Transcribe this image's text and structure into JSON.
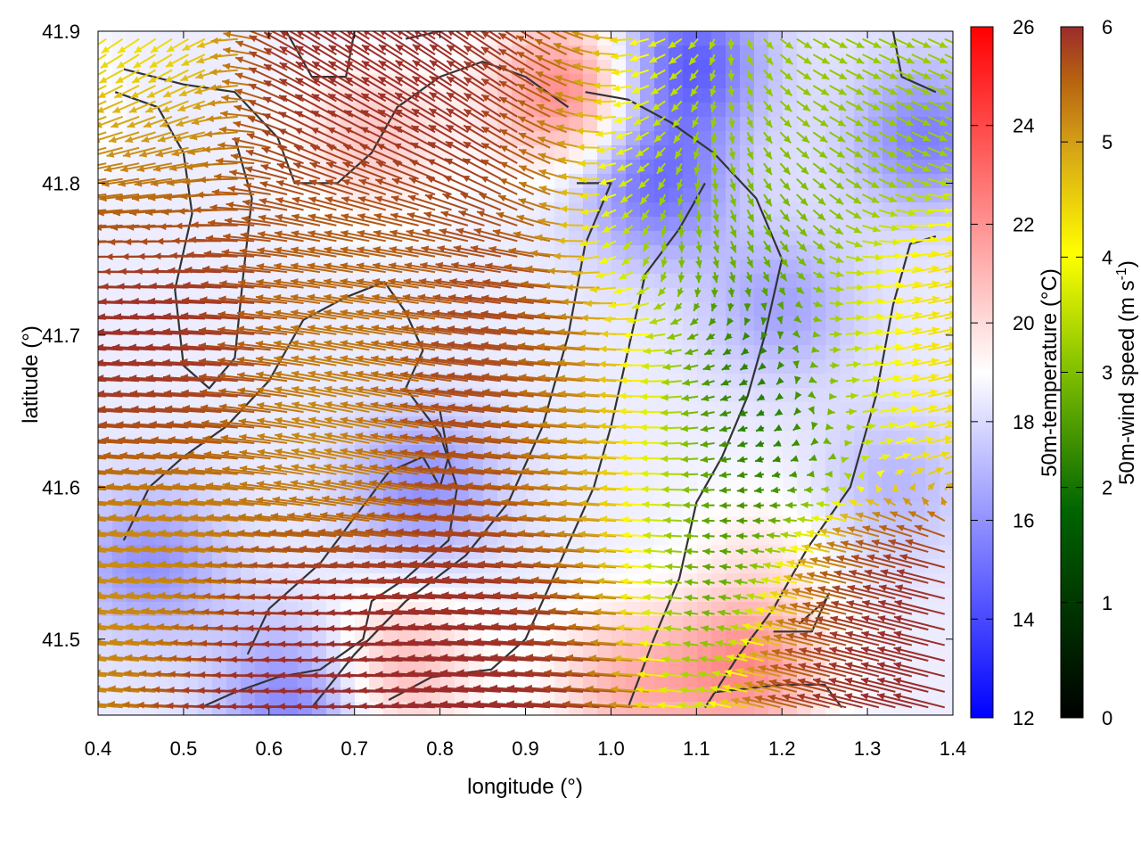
{
  "chart_data": {
    "type": "heatmap",
    "subtype": "vector-field-over-temperature-map",
    "xlabel": "longitude (°)",
    "ylabel": "latitude (°)",
    "xlim": [
      0.4,
      1.4
    ],
    "ylim": [
      41.45,
      41.9
    ],
    "x_ticks": [
      "0.4",
      "0.5",
      "0.6",
      "0.7",
      "0.8",
      "0.9",
      "1.0",
      "1.1",
      "1.2",
      "1.3",
      "1.4"
    ],
    "y_ticks": [
      "41.5",
      "41.6",
      "41.7",
      "41.8",
      "41.9"
    ],
    "grid": false,
    "legend": "none",
    "temperature_colorbar": {
      "label": "50m-temperature (°C)",
      "range": [
        12,
        26
      ],
      "ticks": [
        "12",
        "14",
        "16",
        "18",
        "20",
        "22",
        "24",
        "26"
      ],
      "colors": [
        "#0000ff",
        "#ffffff",
        "#ff0000"
      ]
    },
    "wind_colorbar": {
      "label_main": "50m-wind speed (m s",
      "label_exp": "-1",
      "label_close": ")",
      "range": [
        0,
        6
      ],
      "ticks": [
        "0",
        "1",
        "2",
        "3",
        "4",
        "5",
        "6"
      ],
      "colors": [
        "#000000",
        "#006400",
        "#7fbf00",
        "#ffff00",
        "#d4a017",
        "#b8640f",
        "#9c2b2b"
      ]
    },
    "temperature_blobs": [
      {
        "lon": 0.95,
        "lat": 41.86,
        "t": 22.5
      },
      {
        "lon": 0.3,
        "lat": 41.85,
        "t": 21.0
      },
      {
        "lon": 0.72,
        "lat": 41.83,
        "t": 20.5
      },
      {
        "lon": 1.09,
        "lat": 41.88,
        "t": 14.5
      },
      {
        "lon": 1.05,
        "lat": 41.8,
        "t": 15.0
      },
      {
        "lon": 1.37,
        "lat": 41.83,
        "t": 15.5
      },
      {
        "lon": 1.2,
        "lat": 41.72,
        "t": 16.5
      },
      {
        "lon": 0.46,
        "lat": 41.55,
        "t": 16.0
      },
      {
        "lon": 0.78,
        "lat": 41.6,
        "t": 16.0
      },
      {
        "lon": 1.18,
        "lat": 41.56,
        "t": 19.5
      },
      {
        "lon": 1.16,
        "lat": 41.48,
        "t": 22.0
      },
      {
        "lon": 1.02,
        "lat": 41.47,
        "t": 21.0
      },
      {
        "lon": 0.75,
        "lat": 41.48,
        "t": 21.0
      },
      {
        "lon": 0.63,
        "lat": 41.46,
        "t": 15.5
      },
      {
        "lon": 1.33,
        "lat": 41.6,
        "t": 17.0
      }
    ],
    "wind_regions": [
      {
        "lon": 0.45,
        "lat": 41.78,
        "u": -5.0,
        "v": 0.2,
        "speed": 6.0
      },
      {
        "lon": 0.5,
        "lat": 41.68,
        "u": -5.8,
        "v": 0.3,
        "speed": 6.0
      },
      {
        "lon": 0.72,
        "lat": 41.85,
        "u": -3.8,
        "v": 2.4,
        "speed": 6.0
      },
      {
        "lon": 0.9,
        "lat": 41.87,
        "u": -3.5,
        "v": 2.5,
        "speed": 6.0
      },
      {
        "lon": 0.88,
        "lat": 41.65,
        "u": -5.5,
        "v": 0.6,
        "speed": 6.0
      },
      {
        "lon": 0.92,
        "lat": 41.52,
        "u": -5.7,
        "v": 0.4,
        "speed": 6.0
      },
      {
        "lon": 0.68,
        "lat": 41.49,
        "u": -5.5,
        "v": 0.1,
        "speed": 6.0
      },
      {
        "lon": 1.3,
        "lat": 41.5,
        "u": -4.8,
        "v": 1.2,
        "speed": 6.0
      },
      {
        "lon": 0.72,
        "lat": 41.65,
        "u": -4.0,
        "v": 0.9,
        "speed": 4.2
      },
      {
        "lon": 0.5,
        "lat": 41.57,
        "u": -4.2,
        "v": 0.4,
        "speed": 4.3
      },
      {
        "lon": 0.72,
        "lat": 41.75,
        "u": -4.3,
        "v": 0.5,
        "speed": 5.0
      },
      {
        "lon": 1.0,
        "lat": 41.62,
        "u": -3.2,
        "v": 0.2,
        "speed": 3.6
      },
      {
        "lon": 1.18,
        "lat": 41.65,
        "u": -0.8,
        "v": -0.5,
        "speed": 1.0
      },
      {
        "lon": 1.14,
        "lat": 41.55,
        "u": -0.6,
        "v": 0.1,
        "speed": 1.3
      },
      {
        "lon": 1.15,
        "lat": 41.8,
        "u": 0.8,
        "v": -1.2,
        "speed": 1.8
      },
      {
        "lon": 1.35,
        "lat": 41.68,
        "u": 2.8,
        "v": 0.6,
        "speed": 3.4
      },
      {
        "lon": 1.05,
        "lat": 41.85,
        "u": -1.8,
        "v": -1.1,
        "speed": 2.5
      },
      {
        "lon": 1.25,
        "lat": 41.86,
        "u": 1.8,
        "v": -0.8,
        "speed": 2.2
      },
      {
        "lon": 0.45,
        "lat": 41.84,
        "u": -1.6,
        "v": -1.5,
        "speed": 3.0
      }
    ],
    "contours": [
      [
        [
          0.43,
          41.565
        ],
        [
          0.46,
          41.6
        ],
        [
          0.5,
          41.62
        ],
        [
          0.55,
          41.64
        ],
        [
          0.6,
          41.67
        ],
        [
          0.64,
          41.71
        ],
        [
          0.69,
          41.725
        ],
        [
          0.735,
          41.735
        ],
        [
          0.76,
          41.715
        ],
        [
          0.78,
          41.69
        ],
        [
          0.76,
          41.665
        ],
        [
          0.8,
          41.635
        ],
        [
          0.82,
          41.6
        ],
        [
          0.81,
          41.565
        ],
        [
          0.76,
          41.54
        ],
        [
          0.72,
          41.525
        ],
        [
          0.71,
          41.5
        ],
        [
          0.66,
          41.48
        ],
        [
          0.61,
          41.475
        ],
        [
          0.56,
          41.465
        ],
        [
          0.52,
          41.455
        ]
      ],
      [
        [
          0.575,
          41.49
        ],
        [
          0.6,
          41.52
        ],
        [
          0.66,
          41.55
        ],
        [
          0.7,
          41.58
        ],
        [
          0.74,
          41.61
        ],
        [
          0.78,
          41.62
        ],
        [
          0.8,
          41.6
        ],
        [
          0.81,
          41.62
        ],
        [
          0.8,
          41.65
        ]
      ],
      [
        [
          0.65,
          41.455
        ],
        [
          0.7,
          41.49
        ],
        [
          0.76,
          41.525
        ],
        [
          0.83,
          41.555
        ],
        [
          0.88,
          41.59
        ],
        [
          0.92,
          41.64
        ],
        [
          0.95,
          41.7
        ],
        [
          0.97,
          41.76
        ],
        [
          1.0,
          41.8
        ],
        [
          0.96,
          41.8
        ]
      ],
      [
        [
          0.74,
          41.46
        ],
        [
          0.79,
          41.475
        ],
        [
          0.86,
          41.48
        ],
        [
          0.9,
          41.5
        ],
        [
          0.94,
          41.55
        ],
        [
          0.98,
          41.6
        ],
        [
          1.0,
          41.64
        ],
        [
          1.02,
          41.69
        ],
        [
          1.04,
          41.74
        ],
        [
          1.08,
          41.77
        ],
        [
          1.11,
          41.8
        ]
      ],
      [
        [
          1.02,
          41.455
        ],
        [
          1.05,
          41.5
        ],
        [
          1.08,
          41.54
        ],
        [
          1.1,
          41.59
        ],
        [
          1.13,
          41.62
        ],
        [
          1.16,
          41.66
        ],
        [
          1.18,
          41.7
        ],
        [
          1.2,
          41.75
        ],
        [
          1.17,
          41.79
        ],
        [
          1.12,
          41.82
        ],
        [
          1.07,
          41.84
        ],
        [
          1.02,
          41.855
        ],
        [
          0.97,
          41.86
        ]
      ],
      [
        [
          1.11,
          41.455
        ],
        [
          1.15,
          41.49
        ],
        [
          1.19,
          41.52
        ],
        [
          1.23,
          41.56
        ],
        [
          1.28,
          41.6
        ],
        [
          1.31,
          41.66
        ],
        [
          1.33,
          41.72
        ],
        [
          1.35,
          41.76
        ],
        [
          1.38,
          41.765
        ]
      ],
      [
        [
          0.42,
          41.86
        ],
        [
          0.47,
          41.85
        ],
        [
          0.5,
          41.82
        ],
        [
          0.51,
          41.78
        ],
        [
          0.49,
          41.73
        ],
        [
          0.5,
          41.68
        ],
        [
          0.53,
          41.665
        ],
        [
          0.56,
          41.685
        ],
        [
          0.57,
          41.74
        ],
        [
          0.58,
          41.79
        ],
        [
          0.56,
          41.83
        ]
      ],
      [
        [
          0.43,
          41.875
        ],
        [
          0.5,
          41.865
        ],
        [
          0.56,
          41.86
        ],
        [
          0.61,
          41.83
        ],
        [
          0.63,
          41.8
        ],
        [
          0.68,
          41.8
        ],
        [
          0.72,
          41.82
        ],
        [
          0.75,
          41.85
        ],
        [
          0.8,
          41.87
        ],
        [
          0.85,
          41.88
        ],
        [
          0.9,
          41.87
        ],
        [
          0.95,
          41.85
        ]
      ],
      [
        [
          1.19,
          41.505
        ],
        [
          1.235,
          41.505
        ],
        [
          1.255,
          41.53
        ],
        [
          1.25,
          41.525
        ],
        [
          1.22,
          41.51
        ]
      ],
      [
        [
          1.12,
          41.465
        ],
        [
          1.2,
          41.47
        ],
        [
          1.25,
          41.47
        ],
        [
          1.27,
          41.455
        ]
      ],
      [
        [
          0.62,
          41.9
        ],
        [
          0.65,
          41.87
        ],
        [
          0.69,
          41.87
        ],
        [
          0.7,
          41.9
        ]
      ],
      [
        [
          0.76,
          41.895
        ],
        [
          0.8,
          41.9
        ],
        [
          0.86,
          41.905
        ]
      ],
      [
        [
          1.33,
          41.9
        ],
        [
          1.34,
          41.87
        ],
        [
          1.38,
          41.86
        ]
      ]
    ]
  }
}
